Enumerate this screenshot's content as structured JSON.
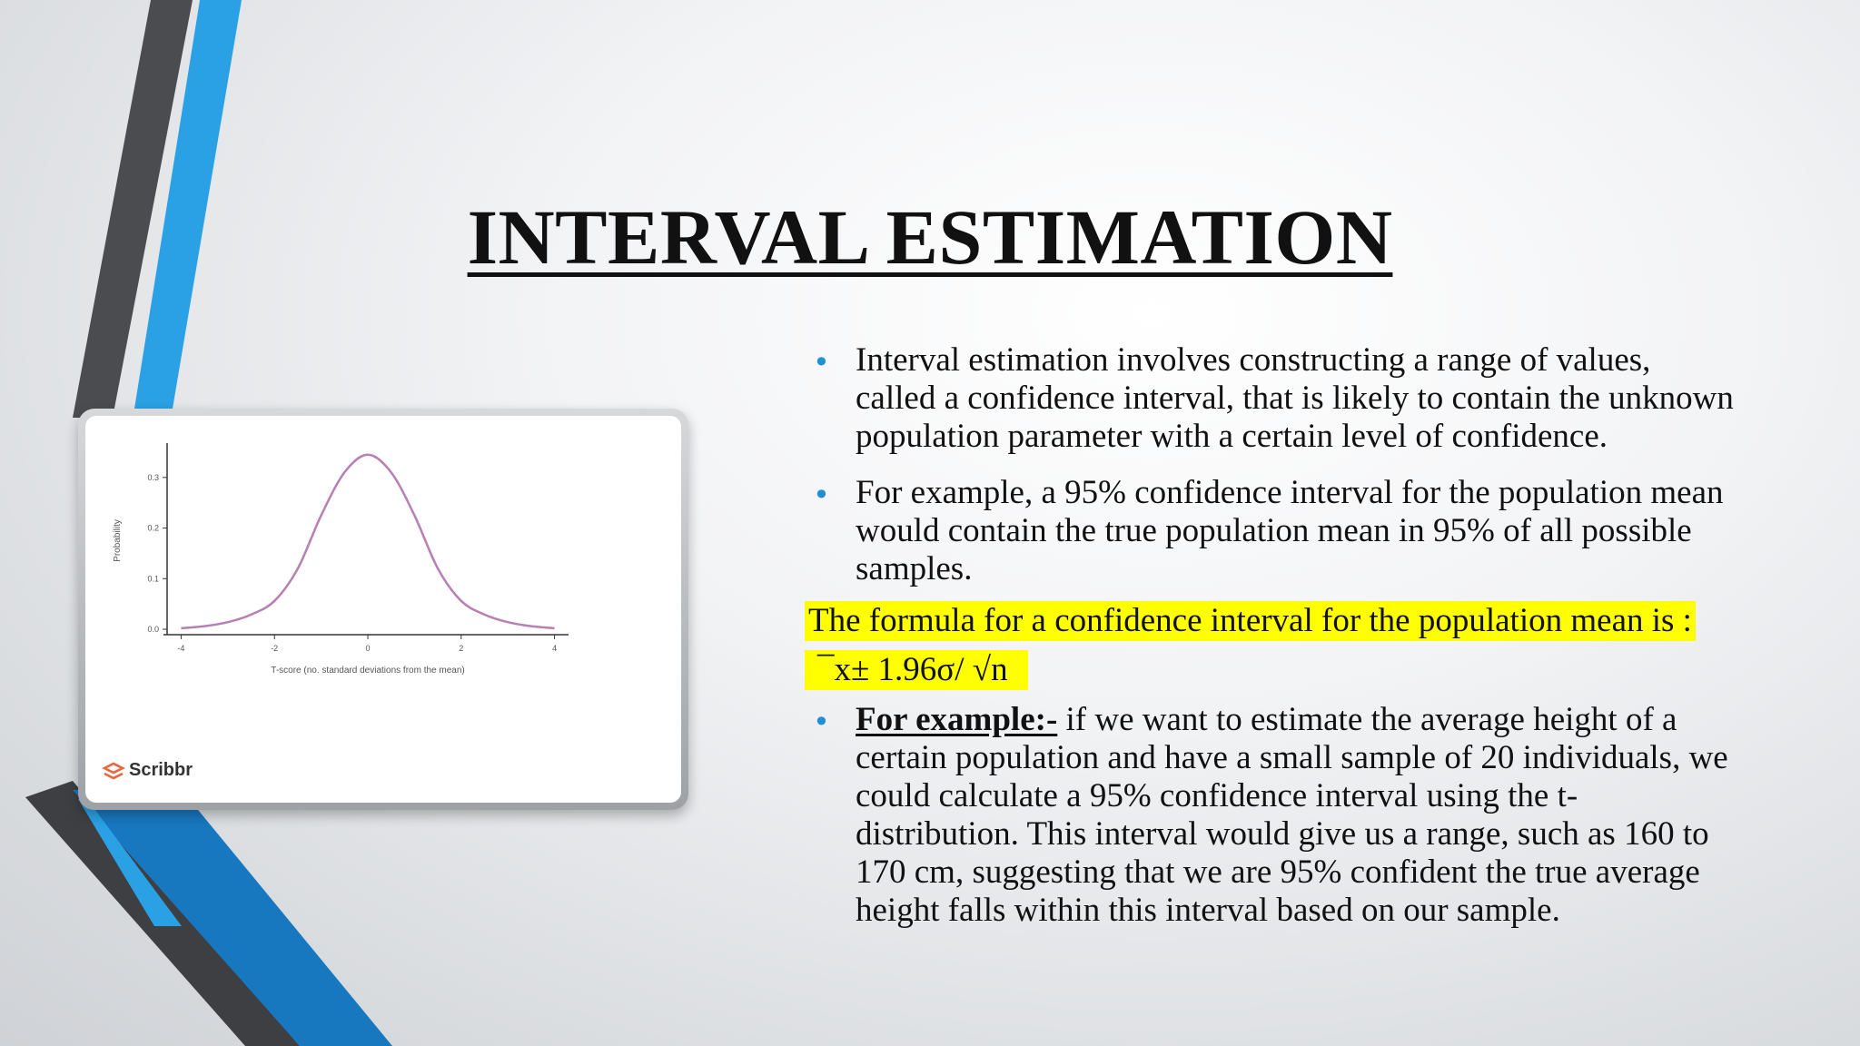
{
  "slide": {
    "title": "INTERVAL ESTIMATION",
    "accent_colors": {
      "blue": "#2aa1e4",
      "dark_blue": "#1878bf",
      "dark_gray": "#3d3f42",
      "highlight": "#ffff00",
      "bullet": "#1f8fd6"
    }
  },
  "bullets": [
    {
      "text": "Interval estimation involves constructing a range of values, called a confidence interval, that is likely to contain the unknown population parameter with a certain level of confidence."
    },
    {
      "text": "For example, a 95% confidence interval for the population mean would contain the true population mean in 95% of all possible samples."
    }
  ],
  "formula_intro": "The formula for a confidence interval for the population mean is :",
  "formula": "¯x± 1.96σ/ √n",
  "example": {
    "label": "For example:-",
    "text": " if we want to estimate the average height of a certain population and have a small sample of 20 individuals, we could calculate a 95% confidence interval using the t-distribution. This interval would give us a range, such as 160 to 170 cm, suggesting that we are 95% confident the true average height falls within this interval based on our sample."
  },
  "figure": {
    "brand": "Scribbr",
    "brand_icon": "scribbr-logo-icon",
    "curve_color": "#b77fb3"
  },
  "chart_data": {
    "type": "line",
    "xlabel": "T-score (no. standard deviations from the mean)",
    "ylabel": "Probability",
    "xlim": [
      -4.3,
      4.3
    ],
    "ylim": [
      0,
      0.35
    ],
    "x_ticks": [
      -4,
      -2,
      0,
      2,
      4
    ],
    "x_tick_labels": [
      "-4",
      "-2",
      "0",
      "2",
      "4"
    ],
    "y_ticks": [
      0.0,
      0.1,
      0.2,
      0.3
    ],
    "y_tick_labels": [
      "0.0",
      "0.1",
      "0.2",
      "0.3"
    ],
    "grid": false,
    "series": [
      {
        "x": [
          -4.0,
          -3.5,
          -3.0,
          -2.5,
          -2.0,
          -1.5,
          -1.0,
          -0.5,
          0.0,
          0.5,
          1.0,
          1.5,
          2.0,
          2.5,
          3.0,
          3.5,
          4.0
        ],
        "y": [
          0.002,
          0.006,
          0.014,
          0.029,
          0.056,
          0.12,
          0.225,
          0.31,
          0.345,
          0.31,
          0.225,
          0.12,
          0.056,
          0.029,
          0.014,
          0.006,
          0.002
        ]
      }
    ]
  }
}
